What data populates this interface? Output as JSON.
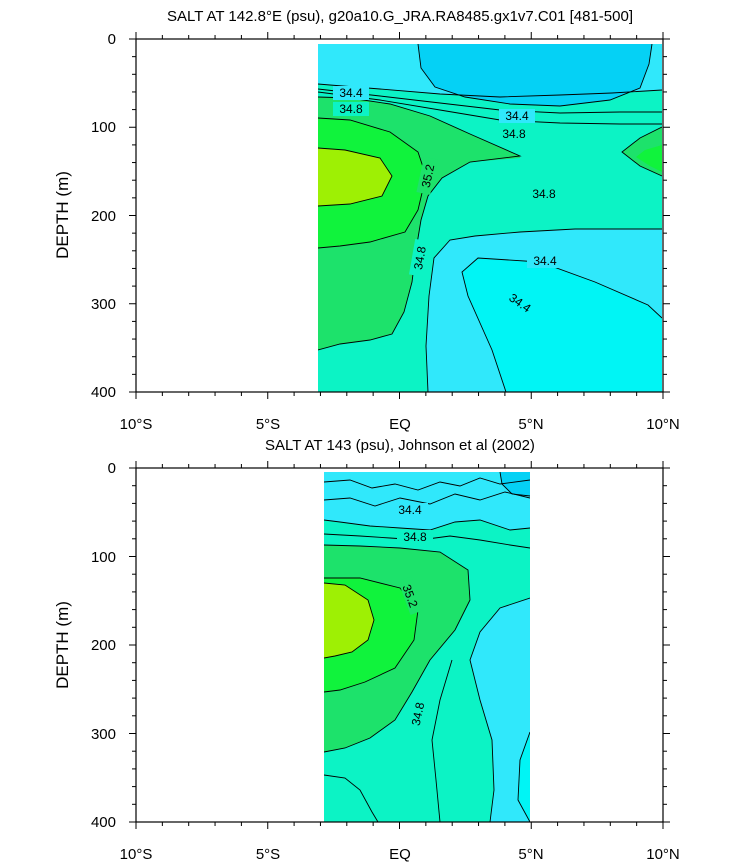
{
  "chart_data": [
    {
      "type": "contour",
      "title": "SALT AT 142.8°E (psu), g20a10.G_JRA.RA8485.gx1v7.C01 [481-500]",
      "ylabel": "DEPTH (m)",
      "xlim": [
        -10,
        10
      ],
      "ylim": [
        400,
        0
      ],
      "x_ticks": [
        "10°S",
        "5°S",
        "EQ",
        "5°N",
        "10°N"
      ],
      "y_ticks": [
        "0",
        "100",
        "200",
        "300",
        "400"
      ],
      "contour_labels": [
        "34.4",
        "34.8",
        "34.4",
        "34.8",
        "35.2",
        "34.8",
        "34.8",
        "34.4",
        "34.4"
      ],
      "colors": {
        "lt34.2": "#05d1f5",
        "34.2-34.6": "#30e8fb",
        "34.6-35.0": "#0cf3c5",
        "35.0-35.4": "#1de26b",
        "35.4-35.6": "#10f33c",
        "gt35.6": "#9ef004"
      }
    },
    {
      "type": "contour",
      "title": "SALT AT 143 (psu), Johnson et al (2002)",
      "ylabel": "DEPTH (m)",
      "xlim": [
        -10,
        10
      ],
      "ylim": [
        400,
        0
      ],
      "x_ticks": [
        "10°S",
        "5°S",
        "EQ",
        "5°N",
        "10°N"
      ],
      "y_ticks": [
        "0",
        "100",
        "200",
        "300",
        "400"
      ],
      "contour_labels": [
        "34.4",
        "34.8",
        "35.2",
        "34.8"
      ]
    }
  ]
}
